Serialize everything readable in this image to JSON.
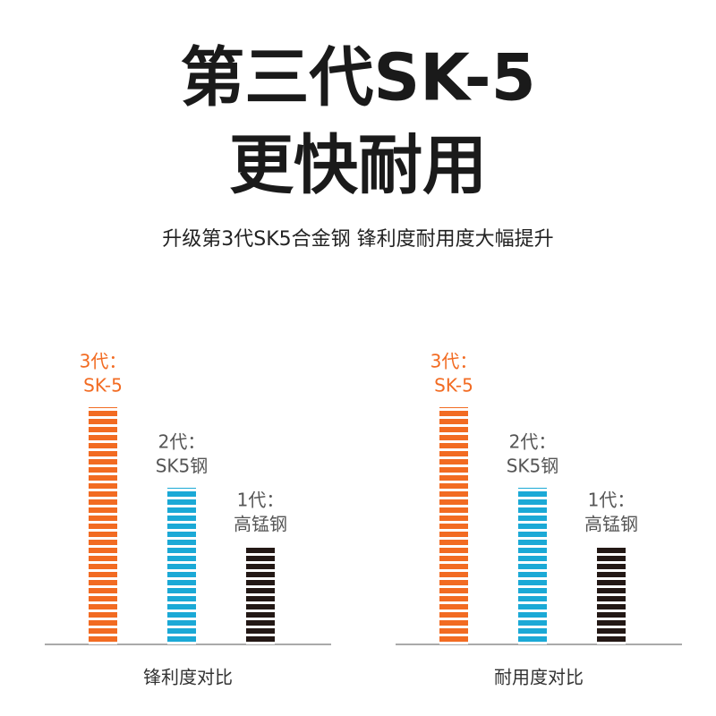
{
  "header": {
    "title_lines": [
      "第三代SK-5",
      "更快耐用"
    ],
    "subtitle": "升级第3代SK5合金钢 锋利度耐用度大幅提升"
  },
  "chart_data": [
    {
      "type": "bar",
      "xlabel": "锋利度对比",
      "categories": [
        [
          "3代：",
          "SK-5"
        ],
        [
          "2代：",
          "SK5钢"
        ],
        [
          "1代：",
          "高锰钢"
        ]
      ],
      "values": [
        265,
        175,
        110
      ],
      "colors": [
        "#f26b22",
        "#1ba9d6",
        "#231815"
      ],
      "ylim": [
        0,
        300
      ]
    },
    {
      "type": "bar",
      "xlabel": "耐用度对比",
      "categories": [
        [
          "3代：",
          "SK-5"
        ],
        [
          "2代：",
          "SK5钢"
        ],
        [
          "1代：",
          "高锰钢"
        ]
      ],
      "values": [
        265,
        175,
        110
      ],
      "colors": [
        "#f26b22",
        "#1ba9d6",
        "#231815"
      ],
      "ylim": [
        0,
        300
      ]
    }
  ]
}
